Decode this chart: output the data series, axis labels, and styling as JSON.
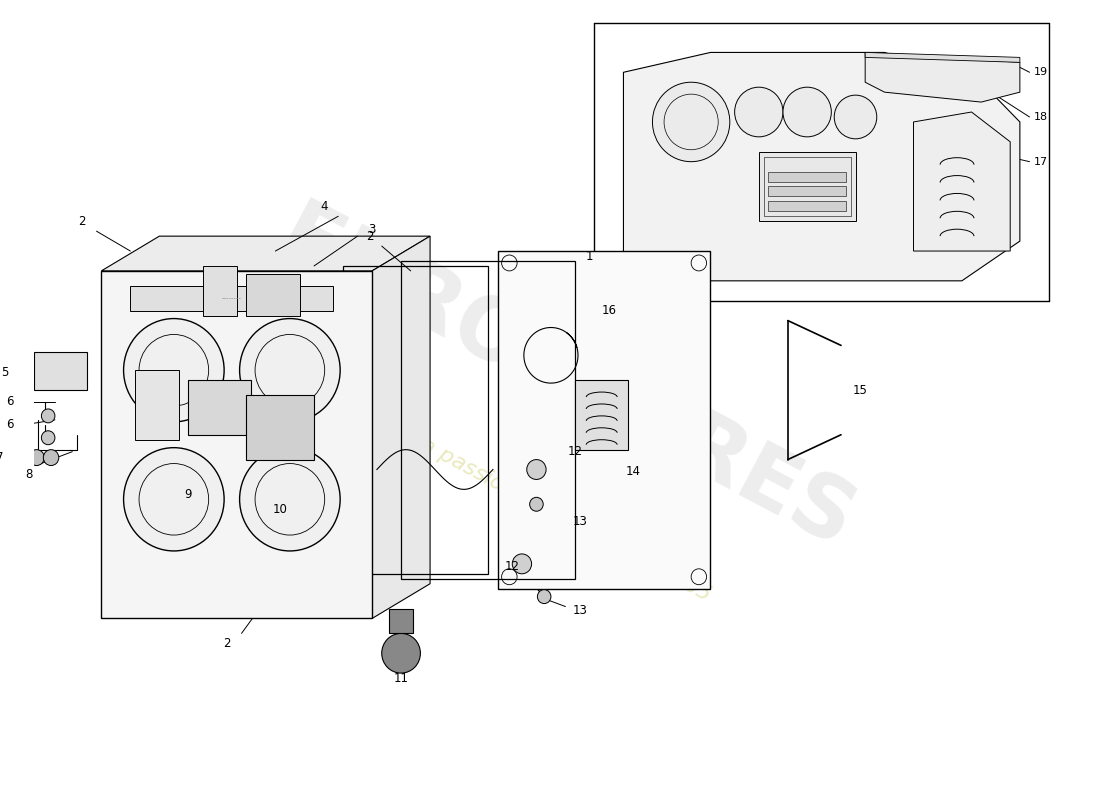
{
  "bg_color": "#ffffff",
  "line_color": "#000000",
  "figsize": [
    11.0,
    8.0
  ],
  "dpi": 100,
  "watermark1": "EUROSPARES",
  "watermark2": "a passion for cars since 1985"
}
